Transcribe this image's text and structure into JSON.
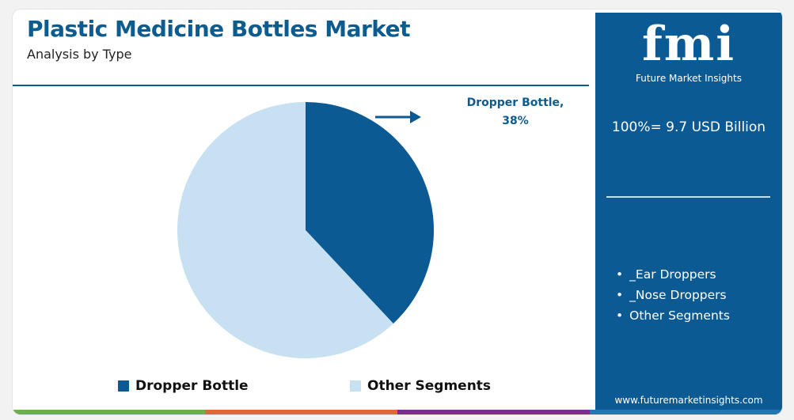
{
  "header": {
    "title": "Plastic Medicine Bottles Market",
    "subtitle": "Analysis by Type"
  },
  "chart_data": {
    "type": "pie",
    "title": "Plastic Medicine Bottles Market",
    "subtitle": "Analysis by Type",
    "slices": [
      {
        "name": "Dropper Bottle",
        "value": 38,
        "color": "#0c5a93"
      },
      {
        "name": "Other Segments",
        "value": 62,
        "color": "#c7e1f3"
      }
    ],
    "annotation": {
      "line1": "Dropper Bottle,",
      "line2": "38%"
    },
    "legend": [
      "Dropper Bottle",
      "Other Segments"
    ],
    "legend_position": "bottom"
  },
  "sidebar": {
    "logo_text": "fmi",
    "logo_subtitle": "Future Market Insights",
    "total_label": "100%= 9.7 USD Billion",
    "segments": [
      "_Ear Droppers",
      "_Nose Droppers",
      "Other Segments"
    ],
    "website": "www.futuremarketinsights.com",
    "background_color": "#0c5a93"
  },
  "bottom_bar_colors": [
    "#6ab04c",
    "#e0673a",
    "#7b2d8e",
    "#1f77b4"
  ]
}
